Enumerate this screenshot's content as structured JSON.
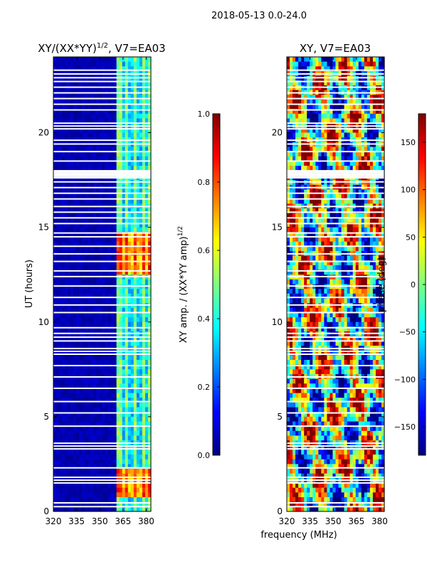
{
  "suptitle": "2018-05-13 0.0-24.0",
  "colors": {
    "background_blue": "#00008f",
    "gap_white": "#ffffff",
    "jet": [
      "#00007f",
      "#0000ff",
      "#007fff",
      "#00ffff",
      "#7fff7f",
      "#ffff00",
      "#ff7f00",
      "#ff0000",
      "#7f0000"
    ]
  },
  "chart_data": [
    {
      "type": "heatmap",
      "title_main": "XY/(XX*YY)",
      "title_exp": "1/2",
      "title_suffix": ", V7=EA03",
      "xlabel": "",
      "ylabel": "UT (hours)",
      "xlim": [
        320,
        383
      ],
      "ylim": [
        0,
        24
      ],
      "xticks": [
        320,
        335,
        350,
        365,
        380
      ],
      "yticks": [
        0,
        5,
        10,
        15,
        20
      ],
      "colorbar": {
        "label_main": "XY amp. / (XX*YY amp)",
        "label_exp": "1/2",
        "range": [
          0.0,
          1.0
        ],
        "ticks": [
          "0.0",
          "0.2",
          "0.4",
          "0.6",
          "0.8",
          "1.0"
        ]
      },
      "gaps_ut": [
        0.25,
        0.45,
        1.5,
        1.65,
        1.8,
        2.3,
        3.3,
        3.45,
        3.6,
        4.5,
        5.2,
        5.8,
        6.5,
        7.1,
        7.7,
        8.3,
        8.45,
        8.6,
        9.0,
        9.2,
        9.4,
        9.7,
        10.5,
        10.9,
        11.3,
        11.9,
        12.4,
        12.7,
        13.2,
        13.6,
        14.0,
        14.5,
        14.7,
        15.2,
        15.5,
        15.8,
        16.1,
        16.5,
        16.8,
        17.1,
        17.4,
        17.65,
        17.8,
        17.95,
        18.5,
        19.0,
        19.4,
        19.6,
        20.2,
        20.35,
        20.5,
        21.2,
        21.5,
        21.8,
        22.1,
        22.4,
        22.7,
        22.9,
        23.1,
        23.3
      ]
    },
    {
      "type": "heatmap",
      "title_main": "XY, V7=EA03",
      "xlabel": "frequency (MHz)",
      "ylabel": "",
      "xlim": [
        320,
        383
      ],
      "ylim": [
        0,
        24
      ],
      "xticks": [
        320,
        335,
        350,
        365,
        380
      ],
      "yticks": [
        0,
        5,
        10,
        15,
        20
      ],
      "colorbar": {
        "label": "phase (deg)",
        "range": [
          -180,
          180
        ],
        "ticks": [
          "−150",
          "−100",
          "−50",
          "0",
          "50",
          "100",
          "150"
        ]
      },
      "gaps_ut": [
        0.25,
        0.45,
        1.5,
        1.65,
        1.8,
        2.3,
        3.3,
        3.45,
        3.6,
        4.5,
        5.2,
        5.8,
        6.5,
        7.1,
        7.7,
        8.3,
        8.45,
        8.6,
        9.0,
        9.2,
        9.4,
        9.7,
        10.5,
        10.9,
        11.3,
        11.9,
        12.4,
        12.7,
        13.2,
        13.6,
        14.0,
        14.5,
        14.7,
        15.2,
        15.5,
        15.8,
        16.1,
        16.5,
        16.8,
        17.1,
        17.4,
        17.65,
        17.8,
        17.95,
        18.5,
        19.0,
        19.4,
        19.6,
        20.2,
        20.35,
        20.5,
        21.2,
        21.5,
        21.8,
        22.1,
        22.4,
        22.7,
        22.9,
        23.1,
        23.3
      ]
    }
  ]
}
